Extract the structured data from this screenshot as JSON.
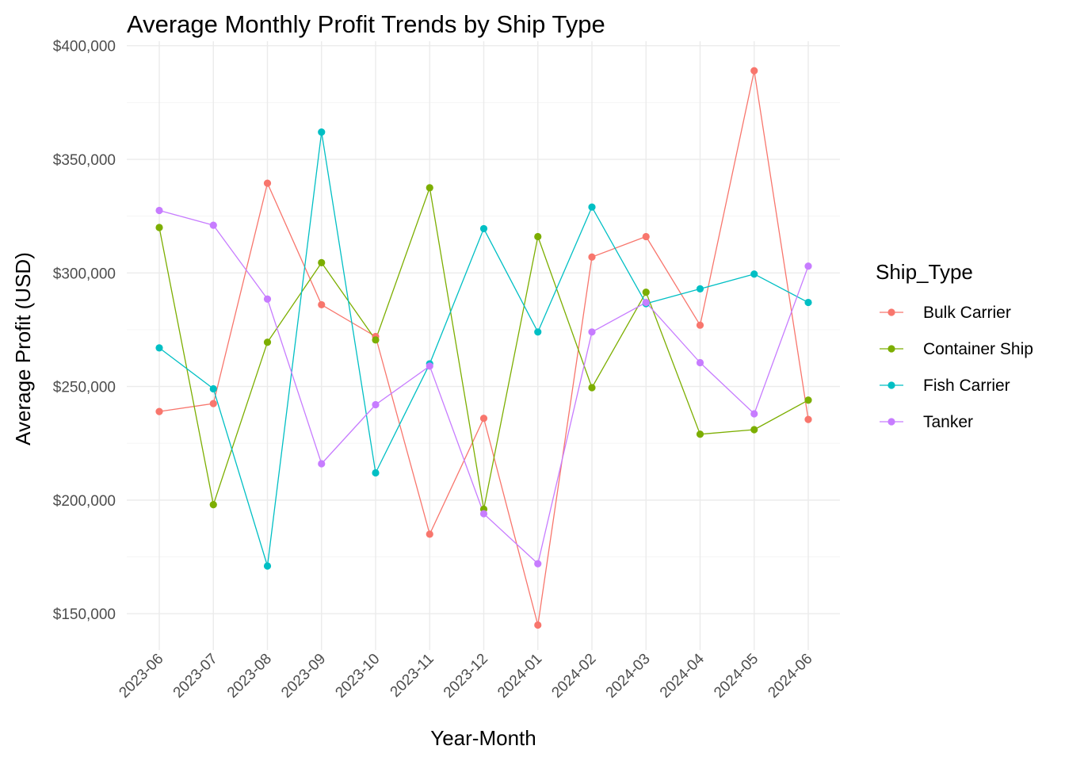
{
  "chart_data": {
    "type": "line",
    "title": "Average Monthly Profit Trends by Ship Type",
    "xlabel": "Year-Month",
    "ylabel": "Average Profit (USD)",
    "categories": [
      "2023-06",
      "2023-07",
      "2023-08",
      "2023-09",
      "2023-10",
      "2023-11",
      "2023-12",
      "2024-01",
      "2024-02",
      "2024-03",
      "2024-04",
      "2024-05",
      "2024-06"
    ],
    "y_ticks": [
      150000,
      200000,
      250000,
      300000,
      350000,
      400000
    ],
    "y_tick_labels": [
      "$150,000",
      "$200,000",
      "$250,000",
      "$300,000",
      "$350,000",
      "$400,000"
    ],
    "ylim": [
      134000,
      402000
    ],
    "grid": true,
    "legend_title": "Ship_Type",
    "legend_position": "right",
    "series": [
      {
        "name": "Bulk Carrier",
        "color": "#F8766D",
        "values": [
          239000,
          242500,
          339500,
          286000,
          272000,
          185000,
          236000,
          145000,
          307000,
          316000,
          277000,
          389000,
          235500
        ]
      },
      {
        "name": "Container Ship",
        "color": "#7CAE00",
        "values": [
          320000,
          198000,
          269500,
          304500,
          270500,
          337500,
          196000,
          316000,
          249500,
          291500,
          229000,
          231000,
          244000
        ]
      },
      {
        "name": "Fish Carrier",
        "color": "#00BFC4",
        "values": [
          267000,
          249000,
          171000,
          362000,
          212000,
          260000,
          319500,
          274000,
          329000,
          286500,
          293000,
          299500,
          287000
        ]
      },
      {
        "name": "Tanker",
        "color": "#C77CFF",
        "values": [
          327500,
          321000,
          288500,
          216000,
          242000,
          259000,
          194000,
          172000,
          274000,
          287000,
          260500,
          238000,
          303000
        ]
      }
    ]
  }
}
